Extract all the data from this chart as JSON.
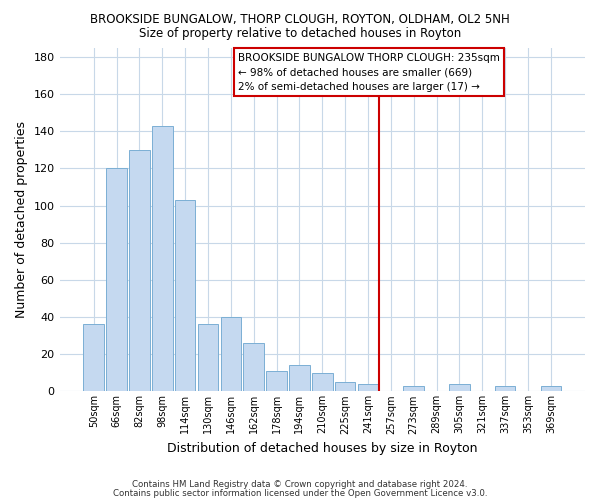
{
  "title": "BROOKSIDE BUNGALOW, THORP CLOUGH, ROYTON, OLDHAM, OL2 5NH",
  "subtitle": "Size of property relative to detached houses in Royton",
  "xlabel": "Distribution of detached houses by size in Royton",
  "ylabel": "Number of detached properties",
  "bar_labels": [
    "50sqm",
    "66sqm",
    "82sqm",
    "98sqm",
    "114sqm",
    "130sqm",
    "146sqm",
    "162sqm",
    "178sqm",
    "194sqm",
    "210sqm",
    "225sqm",
    "241sqm",
    "257sqm",
    "273sqm",
    "289sqm",
    "305sqm",
    "321sqm",
    "337sqm",
    "353sqm",
    "369sqm"
  ],
  "bar_values": [
    36,
    120,
    130,
    143,
    103,
    36,
    40,
    26,
    11,
    14,
    10,
    5,
    4,
    0,
    3,
    0,
    4,
    0,
    3,
    0,
    3
  ],
  "bar_color": "#c5d9f0",
  "bar_edge_color": "#7bafd4",
  "vline_x": 12.5,
  "vline_color": "#cc0000",
  "annotation_title": "BROOKSIDE BUNGALOW THORP CLOUGH: 235sqm",
  "annotation_line1": "← 98% of detached houses are smaller (669)",
  "annotation_line2": "2% of semi-detached houses are larger (17) →",
  "ylim": [
    0,
    185
  ],
  "yticks": [
    0,
    20,
    40,
    60,
    80,
    100,
    120,
    140,
    160,
    180
  ],
  "footer1": "Contains HM Land Registry data © Crown copyright and database right 2024.",
  "footer2": "Contains public sector information licensed under the Open Government Licence v3.0.",
  "fig_bg_color": "#ffffff",
  "plot_bg_color": "#ffffff",
  "grid_color": "#c8d8e8"
}
